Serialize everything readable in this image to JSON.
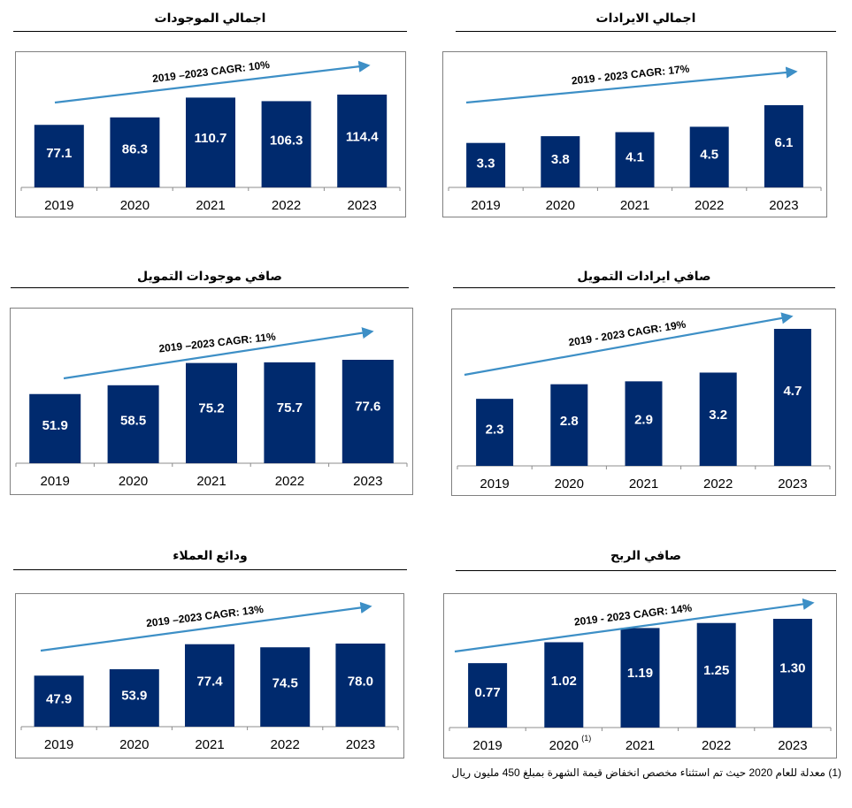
{
  "colors": {
    "bar": "#002a6e",
    "arrow": "#3d8fc6",
    "axis": "#8c8c8c",
    "frame": "#808080",
    "label": "#ffffff"
  },
  "chart_data": [
    {
      "id": "total-assets",
      "type": "bar",
      "title": "اجمالي الموجودات",
      "categories": [
        "2019",
        "2020",
        "2021",
        "2022",
        "2023"
      ],
      "values": [
        77.1,
        86.3,
        110.7,
        106.3,
        114.4
      ],
      "value_labels": [
        "77.1",
        "86.3",
        "110.7",
        "106.3",
        "114.4"
      ],
      "annotation": "2019 –2023 CAGR: 10%",
      "legend": "none",
      "grid": false
    },
    {
      "id": "total-revenue",
      "type": "bar",
      "title": "اجمالي الايرادات",
      "categories": [
        "2019",
        "2020",
        "2021",
        "2022",
        "2023"
      ],
      "values": [
        3.3,
        3.8,
        4.1,
        4.5,
        6.1
      ],
      "value_labels": [
        "3.3",
        "3.8",
        "4.1",
        "4.5",
        "6.1"
      ],
      "annotation": "2019 - 2023 CAGR: 17%",
      "legend": "none",
      "grid": false
    },
    {
      "id": "net-financing-assets",
      "type": "bar",
      "title": "صافي موجودات التمويل",
      "categories": [
        "2019",
        "2020",
        "2021",
        "2022",
        "2023"
      ],
      "values": [
        51.9,
        58.5,
        75.2,
        75.7,
        77.6
      ],
      "value_labels": [
        "51.9",
        "58.5",
        "75.2",
        "75.7",
        "77.6"
      ],
      "annotation": "2019 –2023 CAGR: 11%",
      "legend": "none",
      "grid": false
    },
    {
      "id": "net-financing-revenue",
      "type": "bar",
      "title": "صافي ايرادات التمويل",
      "categories": [
        "2019",
        "2020",
        "2021",
        "2022",
        "2023"
      ],
      "values": [
        2.3,
        2.8,
        2.9,
        3.2,
        4.7
      ],
      "value_labels": [
        "2.3",
        "2.8",
        "2.9",
        "3.2",
        "4.7"
      ],
      "annotation": "2019 - 2023 CAGR: 19%",
      "legend": "none",
      "grid": false
    },
    {
      "id": "customer-deposits",
      "type": "bar",
      "title": "ودائع العملاء",
      "categories": [
        "2019",
        "2020",
        "2021",
        "2022",
        "2023"
      ],
      "values": [
        47.9,
        53.9,
        77.4,
        74.5,
        78.0
      ],
      "value_labels": [
        "47.9",
        "53.9",
        "77.4",
        "74.5",
        "78.0"
      ],
      "annotation": "2019 –2023 CAGR: 13%",
      "legend": "none",
      "grid": false
    },
    {
      "id": "net-profit",
      "type": "bar",
      "title": "صافي الربح",
      "categories": [
        "2019",
        "2020",
        "2021",
        "2022",
        "2023"
      ],
      "category_superscripts": [
        "",
        "(1)",
        "",
        "",
        ""
      ],
      "values": [
        0.77,
        1.02,
        1.19,
        1.25,
        1.3
      ],
      "value_labels": [
        "0.77",
        "1.02",
        "1.19",
        "1.25",
        "1.30"
      ],
      "annotation": "2019 - 2023 CAGR: 14%",
      "legend": "none",
      "grid": false
    }
  ],
  "footnote": "(1) معدلة للعام 2020 حيث تم استثناء مخصص انخفاض قيمة الشهرة بمبلغ 450 مليون ريال"
}
